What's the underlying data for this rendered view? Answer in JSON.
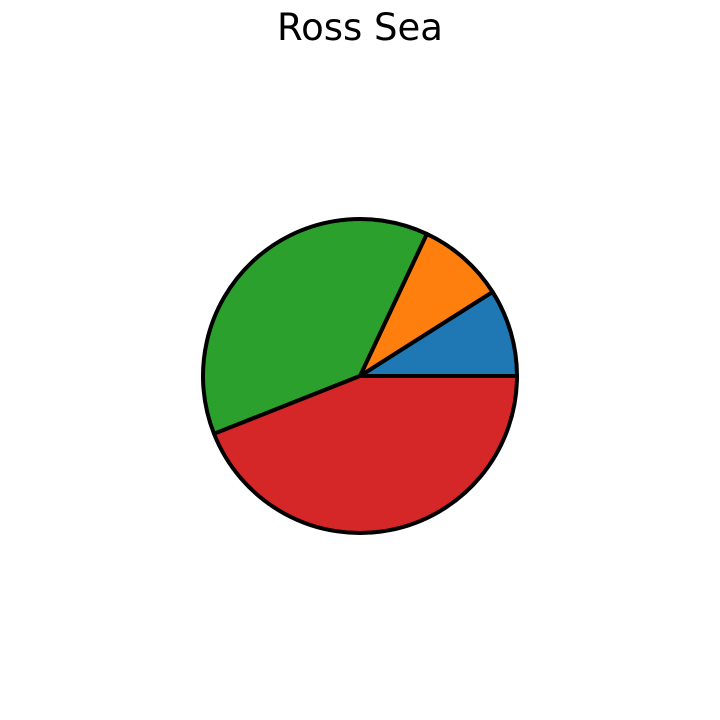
{
  "chart_data": {
    "type": "pie",
    "title": "Ross Sea",
    "slices": [
      {
        "value": 9,
        "color": "#1f77b4"
      },
      {
        "value": 9,
        "color": "#ff7f0e"
      },
      {
        "value": 38,
        "color": "#2ca02c"
      },
      {
        "value": 44,
        "color": "#d62728"
      }
    ],
    "start_angle_deg": 0,
    "direction": "counterclockwise",
    "edge_color": "#000000"
  }
}
